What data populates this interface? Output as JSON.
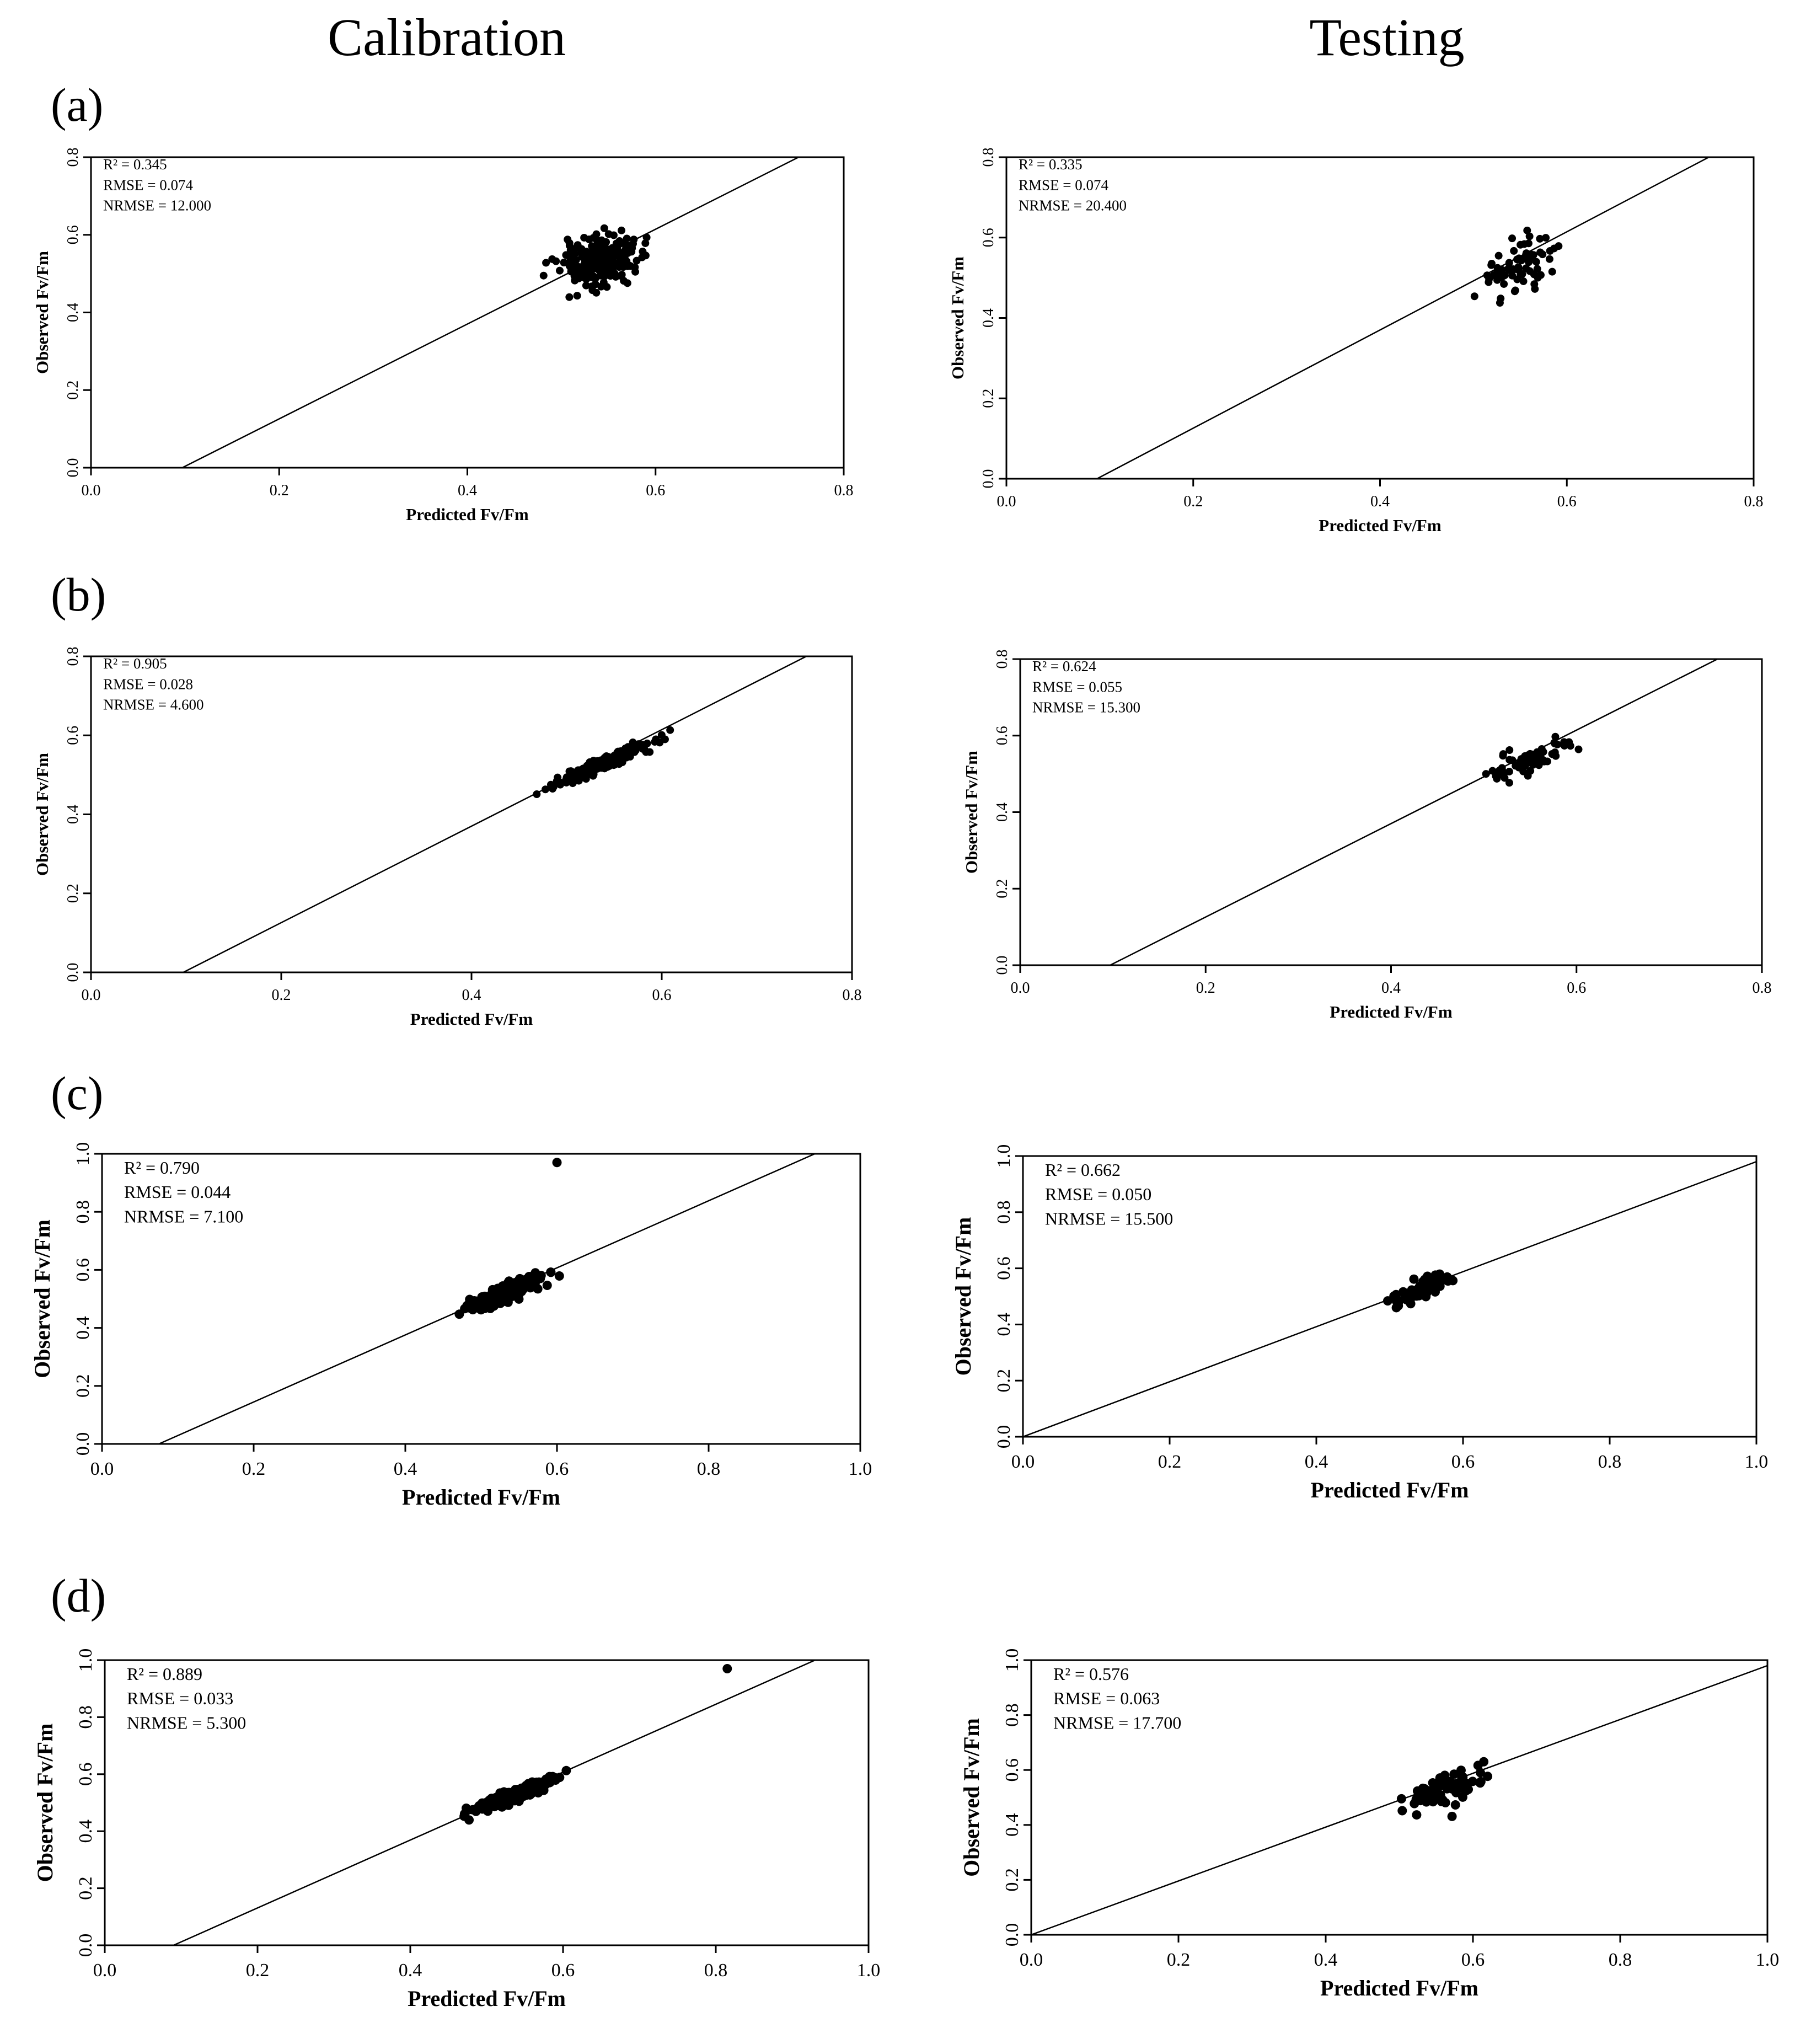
{
  "header": {
    "left_title": "Calibration",
    "right_title": "Testing"
  },
  "row_labels": [
    "(a)",
    "(b)",
    "(c)",
    "(d)"
  ],
  "chart_data": [
    {
      "id": "a-cal",
      "row": "(a)",
      "column": "Calibration",
      "type": "scatter",
      "xlabel": "Predicted Fv/Fm",
      "ylabel": "Observed Fv/Fm",
      "xlim": [
        0,
        0.8
      ],
      "ylim": [
        0,
        0.8
      ],
      "xticks": [
        "0.0",
        "0.2",
        "0.4",
        "0.6",
        "0.8"
      ],
      "yticks": [
        "0.0",
        "0.2",
        "0.4",
        "0.6",
        "0.8"
      ],
      "stats": [
        "R² = 0.345",
        "RMSE = 0.074",
        "NRMSE = 12.000"
      ],
      "fit_line": {
        "x": [
          0.097,
          0.752
        ],
        "y": [
          0,
          0.8
        ]
      },
      "points": {
        "n": 230,
        "x_center": 0.54,
        "x_spread": 0.05,
        "y_center": 0.53,
        "y_spread": 0.075,
        "x_range": [
          0.39,
          0.66
        ],
        "y_range": [
          0.36,
          0.75
        ],
        "seed": 11,
        "trend": 0.55
      }
    },
    {
      "id": "a-test",
      "row": "(a)",
      "column": "Testing",
      "type": "scatter",
      "xlabel": "Predicted Fv/Fm",
      "ylabel": "Observed Fv/Fm",
      "xlim": [
        0,
        0.8
      ],
      "ylim": [
        0,
        0.8
      ],
      "xticks": [
        "0.0",
        "0.2",
        "0.4",
        "0.6",
        "0.8"
      ],
      "yticks": [
        "0.0",
        "0.2",
        "0.4",
        "0.6",
        "0.8"
      ],
      "stats": [
        "R² = 0.335",
        "RMSE = 0.074",
        "NRMSE = 20.400"
      ],
      "fit_line": {
        "x": [
          0.097,
          0.752
        ],
        "y": [
          0,
          0.8
        ]
      },
      "points": {
        "n": 70,
        "x_center": 0.55,
        "x_spread": 0.05,
        "y_center": 0.53,
        "y_spread": 0.085,
        "x_range": [
          0.41,
          0.66
        ],
        "y_range": [
          0.39,
          0.75
        ],
        "seed": 23,
        "trend": 0.6
      }
    },
    {
      "id": "b-cal",
      "row": "(b)",
      "column": "Calibration",
      "type": "scatter",
      "xlabel": "Predicted Fv/Fm",
      "ylabel": "Observed Fv/Fm",
      "xlim": [
        0,
        0.8
      ],
      "ylim": [
        0,
        0.8
      ],
      "xticks": [
        "0.0",
        "0.2",
        "0.4",
        "0.6",
        "0.8"
      ],
      "yticks": [
        "0.0",
        "0.2",
        "0.4",
        "0.6",
        "0.8"
      ],
      "stats": [
        "R² = 0.905",
        "RMSE = 0.028",
        "NRMSE = 4.600"
      ],
      "fit_line": {
        "x": [
          0.097,
          0.752
        ],
        "y": [
          0,
          0.8
        ]
      },
      "points": {
        "n": 230,
        "x_center": 0.54,
        "x_spread": 0.065,
        "y_center": 0.53,
        "y_spread": 0.02,
        "x_range": [
          0.41,
          0.72
        ],
        "y_range": [
          0.36,
          0.74
        ],
        "seed": 31,
        "trend": 1.05
      }
    },
    {
      "id": "b-test",
      "row": "(b)",
      "column": "Testing",
      "type": "scatter",
      "xlabel": "Predicted Fv/Fm",
      "ylabel": "Observed Fv/Fm",
      "xlim": [
        0,
        0.8
      ],
      "ylim": [
        0,
        0.8
      ],
      "xticks": [
        "0.0",
        "0.2",
        "0.4",
        "0.6",
        "0.8"
      ],
      "yticks": [
        "0.0",
        "0.2",
        "0.4",
        "0.6",
        "0.8"
      ],
      "stats": [
        "R² = 0.624",
        "RMSE = 0.055",
        "NRMSE = 15.300"
      ],
      "fit_line": {
        "x": [
          0.097,
          0.752
        ],
        "y": [
          0,
          0.8
        ]
      },
      "points": {
        "n": 70,
        "x_center": 0.55,
        "x_spread": 0.055,
        "y_center": 0.54,
        "y_spread": 0.045,
        "x_range": [
          0.44,
          0.72
        ],
        "y_range": [
          0.39,
          0.75
        ],
        "seed": 47,
        "trend": 0.95
      }
    },
    {
      "id": "c-cal",
      "row": "(c)",
      "column": "Calibration",
      "type": "scatter",
      "xlabel": "Predicted Fv/Fm",
      "ylabel": "Observed Fv/Fm",
      "xlim": [
        0,
        1.0
      ],
      "ylim": [
        0,
        1.0
      ],
      "xticks": [
        "0.0",
        "0.2",
        "0.4",
        "0.6",
        "0.8",
        "1.0"
      ],
      "yticks": [
        "0.0",
        "0.2",
        "0.4",
        "0.6",
        "0.8",
        "1.0"
      ],
      "stats": [
        "R² = 0.790",
        "RMSE = 0.044",
        "NRMSE = 7.100"
      ],
      "fit_line": {
        "x": [
          0.075,
          0.94
        ],
        "y": [
          0,
          1.0
        ]
      },
      "outliers": [
        [
          0.6,
          0.97
        ]
      ],
      "points": {
        "n": 230,
        "x_center": 0.54,
        "x_spread": 0.065,
        "y_center": 0.53,
        "y_spread": 0.035,
        "x_range": [
          0.41,
          0.72
        ],
        "y_range": [
          0.36,
          0.75
        ],
        "seed": 59,
        "trend": 1.05
      }
    },
    {
      "id": "c-test",
      "row": "(c)",
      "column": "Testing",
      "type": "scatter",
      "xlabel": "Predicted Fv/Fm",
      "ylabel": "Observed Fv/Fm",
      "xlim": [
        0,
        1.0
      ],
      "ylim": [
        0,
        1.0
      ],
      "xticks": [
        "0.0",
        "0.2",
        "0.4",
        "0.6",
        "0.8",
        "1.0"
      ],
      "yticks": [
        "0.0",
        "0.2",
        "0.4",
        "0.6",
        "0.8",
        "1.0"
      ],
      "stats": [
        "R² = 0.662",
        "RMSE = 0.050",
        "NRMSE = 15.500"
      ],
      "fit_line": {
        "x": [
          0,
          1.0
        ],
        "y": [
          0,
          0.98
        ]
      },
      "points": {
        "n": 70,
        "x_center": 0.545,
        "x_spread": 0.05,
        "y_center": 0.53,
        "y_spread": 0.04,
        "x_range": [
          0.46,
          0.72
        ],
        "y_range": [
          0.4,
          0.73
        ],
        "seed": 67,
        "trend": 0.95
      }
    },
    {
      "id": "d-cal",
      "row": "(d)",
      "column": "Calibration",
      "type": "scatter",
      "xlabel": "Predicted Fv/Fm",
      "ylabel": "Observed Fv/Fm",
      "xlim": [
        0,
        1.0
      ],
      "ylim": [
        0,
        1.0
      ],
      "xticks": [
        "0.0",
        "0.2",
        "0.4",
        "0.6",
        "0.8",
        "1.0"
      ],
      "yticks": [
        "0.0",
        "0.2",
        "0.4",
        "0.6",
        "0.8",
        "1.0"
      ],
      "stats": [
        "R² = 0.889",
        "RMSE = 0.033",
        "NRMSE = 5.300"
      ],
      "fit_line": {
        "x": [
          0.09,
          0.93
        ],
        "y": [
          0,
          1.0
        ]
      },
      "outliers": [
        [
          0.815,
          0.97
        ]
      ],
      "points": {
        "n": 260,
        "x_center": 0.54,
        "x_spread": 0.06,
        "y_center": 0.53,
        "y_spread": 0.025,
        "x_range": [
          0.41,
          0.72
        ],
        "y_range": [
          0.36,
          0.75
        ],
        "seed": 71,
        "trend": 1.05
      }
    },
    {
      "id": "d-test",
      "row": "(d)",
      "column": "Testing",
      "type": "scatter",
      "xlabel": "Predicted Fv/Fm",
      "ylabel": "Observed Fv/Fm",
      "xlim": [
        0,
        1.0
      ],
      "ylim": [
        0,
        1.0
      ],
      "xticks": [
        "0.0",
        "0.2",
        "0.4",
        "0.6",
        "0.8",
        "1.0"
      ],
      "yticks": [
        "0.0",
        "0.2",
        "0.4",
        "0.6",
        "0.8",
        "1.0"
      ],
      "stats": [
        "R² = 0.576",
        "RMSE = 0.063",
        "NRMSE = 17.700"
      ],
      "fit_line": {
        "x": [
          0,
          1.0
        ],
        "y": [
          0,
          0.98
        ]
      },
      "points": {
        "n": 75,
        "x_center": 0.56,
        "x_spread": 0.065,
        "y_center": 0.53,
        "y_spread": 0.07,
        "x_range": [
          0.45,
          0.72
        ],
        "y_range": [
          0.37,
          0.74
        ],
        "seed": 83,
        "trend": 0.85
      }
    }
  ]
}
